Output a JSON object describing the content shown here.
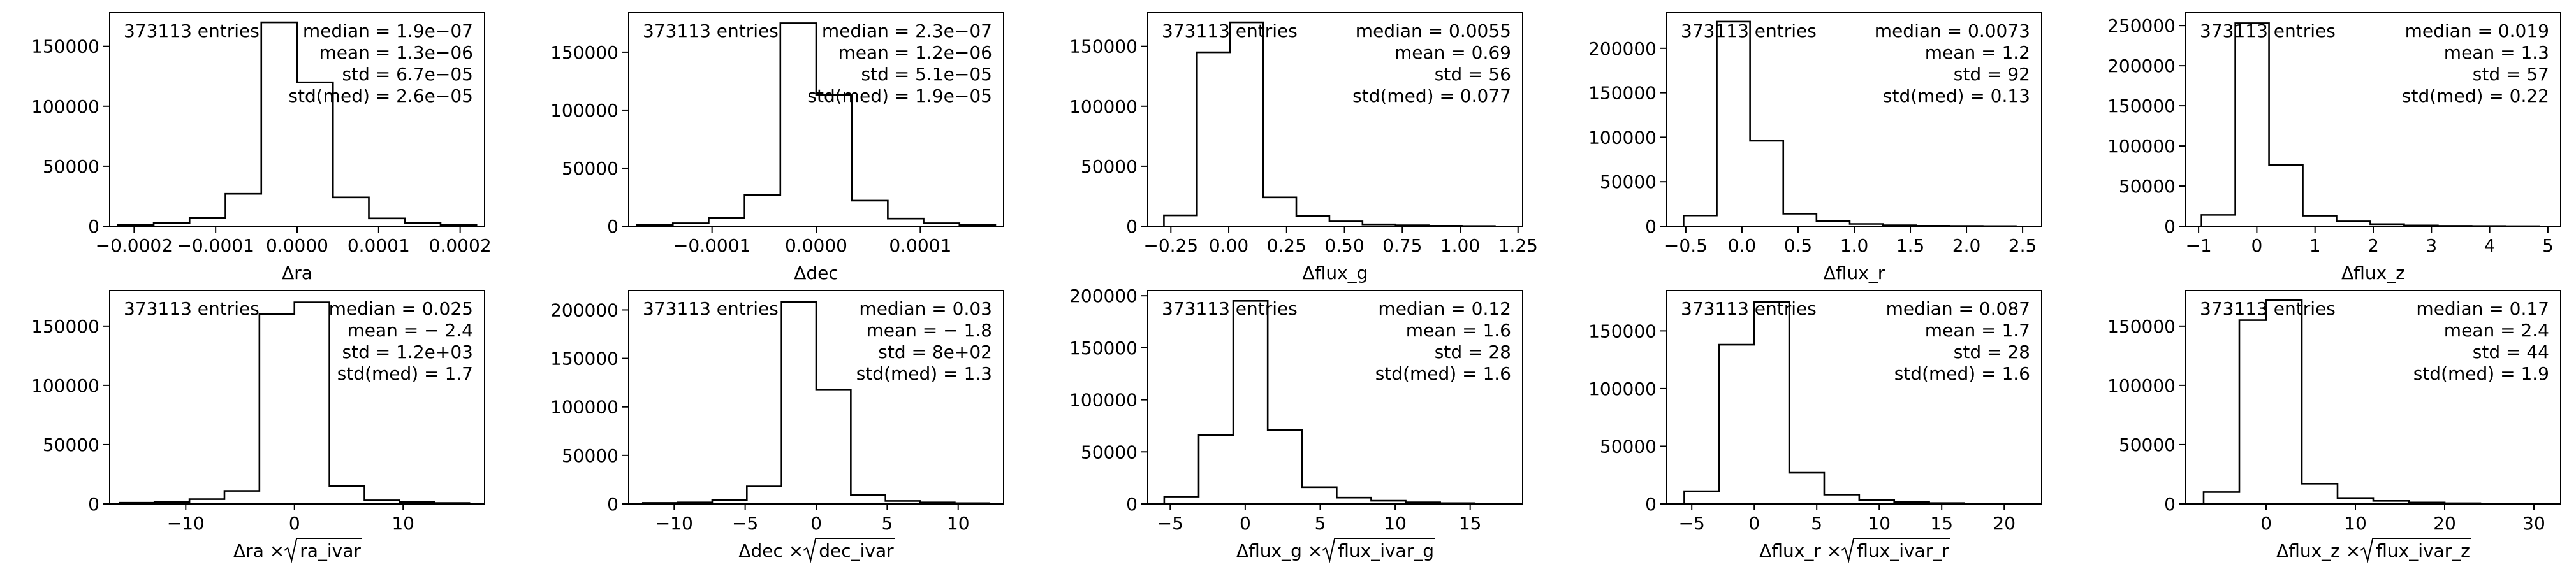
{
  "chart_data": [
    {
      "type": "histogram",
      "xlabel": "Δra",
      "entries_text": "373113 entries",
      "stats": [
        "median = 1.9e−07",
        "mean = 1.3e−06",
        "std = 6.7e−05",
        "std(med) = 2.6e−05"
      ],
      "xlim": [
        -0.00023,
        0.00023
      ],
      "ylim": [
        0,
        178000
      ],
      "xticks": [
        -0.0002,
        -0.0001,
        0.0,
        0.0001,
        0.0002
      ],
      "xtick_labels": [
        "−0.0002",
        "−0.0001",
        "0.0000",
        "0.0001",
        "0.0002"
      ],
      "yticks": [
        0,
        50000,
        100000,
        150000
      ],
      "ytick_labels": [
        "0",
        "50000",
        "100000",
        "150000"
      ],
      "bin_edges": [
        -0.00022,
        -0.000176,
        -0.000132,
        -8.8e-05,
        -4.4e-05,
        0.0,
        4.4e-05,
        8.8e-05,
        0.000132,
        0.000176,
        0.00022
      ],
      "counts": [
        1000,
        2500,
        7000,
        27000,
        170000,
        120000,
        24000,
        6500,
        2500,
        1000
      ]
    },
    {
      "type": "histogram",
      "xlabel": "Δdec",
      "entries_text": "373113 entries",
      "stats": [
        "median = 2.3e−07",
        "mean = 1.2e−06",
        "std = 5.1e−05",
        "std(med) = 1.9e−05"
      ],
      "xlim": [
        -0.00018,
        0.00018
      ],
      "ylim": [
        0,
        184000
      ],
      "xticks": [
        -0.0001,
        0.0,
        0.0001
      ],
      "xtick_labels": [
        "−0.0001",
        "0.0000",
        "0.0001"
      ],
      "yticks": [
        0,
        50000,
        100000,
        150000
      ],
      "ytick_labels": [
        "0",
        "50000",
        "100000",
        "150000"
      ],
      "bin_edges": [
        -0.000172,
        -0.0001376,
        -0.0001032,
        -6.88e-05,
        -3.44e-05,
        0.0,
        3.44e-05,
        6.88e-05,
        0.0001032,
        0.0001376,
        0.000172
      ],
      "counts": [
        1000,
        2500,
        7000,
        27000,
        175000,
        113000,
        22000,
        6500,
        2500,
        1000
      ]
    },
    {
      "type": "histogram",
      "xlabel": "Δflux_g",
      "entries_text": "373113 entries",
      "stats": [
        "median = 0.0055",
        "mean = 0.69",
        "std = 56",
        "std(med) = 0.077"
      ],
      "xlim": [
        -0.35,
        1.27
      ],
      "ylim": [
        0,
        178000
      ],
      "xticks": [
        -0.25,
        0.0,
        0.25,
        0.5,
        0.75,
        1.0,
        1.25
      ],
      "xtick_labels": [
        "−0.25",
        "0.00",
        "0.25",
        "0.50",
        "0.75",
        "1.00",
        "1.25"
      ],
      "yticks": [
        0,
        50000,
        100000,
        150000
      ],
      "ytick_labels": [
        "0",
        "50000",
        "100000",
        "150000"
      ],
      "bin_edges": [
        -0.28,
        -0.137,
        0.006,
        0.149,
        0.292,
        0.435,
        0.578,
        0.721,
        0.864,
        1.007,
        1.15
      ],
      "counts": [
        9000,
        145000,
        170000,
        24000,
        8500,
        4000,
        1500,
        800,
        400,
        200
      ]
    },
    {
      "type": "histogram",
      "xlabel": "Δflux_r",
      "entries_text": "373113 entries",
      "stats": [
        "median = 0.0073",
        "mean = 1.2",
        "std = 92",
        "std(med) = 0.13"
      ],
      "xlim": [
        -0.67,
        2.67
      ],
      "ylim": [
        0,
        240000
      ],
      "xticks": [
        -0.5,
        0.0,
        0.5,
        1.0,
        1.5,
        2.0,
        2.5
      ],
      "xtick_labels": [
        "−0.5",
        "0.0",
        "0.5",
        "1.0",
        "1.5",
        "2.0",
        "2.5"
      ],
      "yticks": [
        0,
        50000,
        100000,
        150000,
        200000
      ],
      "ytick_labels": [
        "0",
        "50000",
        "100000",
        "150000",
        "200000"
      ],
      "bin_edges": [
        -0.52,
        -0.224,
        0.072,
        0.368,
        0.664,
        0.96,
        1.256,
        1.552,
        1.848,
        2.144,
        2.44
      ],
      "counts": [
        12000,
        230000,
        96000,
        14000,
        5500,
        2500,
        1000,
        500,
        300,
        150
      ]
    },
    {
      "type": "histogram",
      "xlabel": "Δflux_z",
      "entries_text": "373113 entries",
      "stats": [
        "median = 0.019",
        "mean = 1.3",
        "std = 57",
        "std(med) = 0.22"
      ],
      "xlim": [
        -1.22,
        5.22
      ],
      "ylim": [
        0,
        266000
      ],
      "xticks": [
        -1,
        0,
        1,
        2,
        3,
        4,
        5
      ],
      "xtick_labels": [
        "−1",
        "0",
        "1",
        "2",
        "3",
        "4",
        "5"
      ],
      "yticks": [
        0,
        50000,
        100000,
        150000,
        200000,
        250000
      ],
      "ytick_labels": [
        "0",
        "50000",
        "100000",
        "150000",
        "200000",
        "250000"
      ],
      "bin_edges": [
        -0.95,
        -0.37,
        0.21,
        0.79,
        1.37,
        1.95,
        2.53,
        3.11,
        3.69,
        4.27,
        4.85
      ],
      "counts": [
        14000,
        253000,
        76000,
        13000,
        6000,
        2500,
        1000,
        500,
        250,
        100
      ]
    },
    {
      "type": "histogram",
      "xlabel_parts": [
        "Δra",
        "ra_ivar"
      ],
      "entries_text": "373113 entries",
      "stats": [
        "median = 0.025",
        "mean = − 2.4",
        "std = 1.2e+03",
        "std(med) = 1.7"
      ],
      "xlim": [
        -17,
        17.5
      ],
      "ylim": [
        0,
        180000
      ],
      "xticks": [
        -10,
        0,
        10
      ],
      "xtick_labels": [
        "−10",
        "0",
        "10"
      ],
      "yticks": [
        0,
        50000,
        100000,
        150000
      ],
      "ytick_labels": [
        "0",
        "50000",
        "100000",
        "150000"
      ],
      "bin_edges": [
        -16.1,
        -12.88,
        -9.66,
        -6.44,
        -3.22,
        0.0,
        3.22,
        6.44,
        9.66,
        12.88,
        16.1
      ],
      "counts": [
        1000,
        1500,
        4000,
        11000,
        160000,
        170000,
        15000,
        3000,
        1500,
        800
      ]
    },
    {
      "type": "histogram",
      "xlabel_parts": [
        "Δdec",
        "dec_ivar"
      ],
      "entries_text": "373113 entries",
      "stats": [
        "median = 0.03",
        "mean = − 1.8",
        "std = 8e+02",
        "std(med) = 1.3"
      ],
      "xlim": [
        -13.2,
        13.2
      ],
      "ylim": [
        0,
        220000
      ],
      "xticks": [
        -10,
        -5,
        0,
        5,
        10
      ],
      "xtick_labels": [
        "−10",
        "−5",
        "0",
        "5",
        "10"
      ],
      "yticks": [
        0,
        50000,
        100000,
        150000,
        200000
      ],
      "ytick_labels": [
        "0",
        "50000",
        "100000",
        "150000",
        "200000"
      ],
      "bin_edges": [
        -12.2,
        -9.76,
        -7.32,
        -4.88,
        -2.44,
        0.0,
        2.44,
        4.88,
        7.32,
        9.76,
        12.2
      ],
      "counts": [
        1000,
        1500,
        4000,
        18000,
        208000,
        118000,
        9000,
        3000,
        1500,
        800
      ]
    },
    {
      "type": "histogram",
      "xlabel_parts": [
        "Δflux_g",
        "flux_ivar_g"
      ],
      "entries_text": "373113 entries",
      "stats": [
        "median = 0.12",
        "mean = 1.6",
        "std = 28",
        "std(med) = 1.6"
      ],
      "xlim": [
        -6.5,
        18.5
      ],
      "ylim": [
        0,
        205000
      ],
      "xticks": [
        -5,
        0,
        5,
        10,
        15
      ],
      "xtick_labels": [
        "−5",
        "0",
        "5",
        "10",
        "15"
      ],
      "yticks": [
        0,
        50000,
        100000,
        150000,
        200000
      ],
      "ytick_labels": [
        "0",
        "50000",
        "100000",
        "150000",
        "200000"
      ],
      "bin_edges": [
        -5.4,
        -3.1,
        -0.8,
        1.5,
        3.8,
        6.1,
        8.4,
        10.7,
        13.0,
        15.3,
        17.6
      ],
      "counts": [
        7000,
        66000,
        195000,
        71000,
        16000,
        6000,
        3000,
        1500,
        700,
        300
      ]
    },
    {
      "type": "histogram",
      "xlabel_parts": [
        "Δflux_r",
        "flux_ivar_r"
      ],
      "entries_text": "373113 entries",
      "stats": [
        "median = 0.087",
        "mean = 1.7",
        "std = 28",
        "std(med) = 1.6"
      ],
      "xlim": [
        -7.0,
        23.0
      ],
      "ylim": [
        0,
        185000
      ],
      "xticks": [
        -5,
        0,
        5,
        10,
        15,
        20
      ],
      "xtick_labels": [
        "−5",
        "0",
        "5",
        "10",
        "15",
        "20"
      ],
      "yticks": [
        0,
        50000,
        100000,
        150000
      ],
      "ytick_labels": [
        "0",
        "50000",
        "100000",
        "150000"
      ],
      "bin_edges": [
        -5.6,
        -2.8,
        0.0,
        2.8,
        5.6,
        8.4,
        11.2,
        14.0,
        16.8,
        19.6,
        22.4
      ],
      "counts": [
        11000,
        138000,
        175000,
        27000,
        8000,
        3500,
        1500,
        700,
        300,
        150
      ]
    },
    {
      "type": "histogram",
      "xlabel_parts": [
        "Δflux_z",
        "flux_ivar_z"
      ],
      "entries_text": "373113 entries",
      "stats": [
        "median = 0.17",
        "mean = 2.4",
        "std = 44",
        "std(med) = 1.9"
      ],
      "xlim": [
        -9.0,
        33.0
      ],
      "ylim": [
        0,
        180000
      ],
      "xticks": [
        0,
        10,
        20,
        30
      ],
      "xtick_labels": [
        "0",
        "10",
        "20",
        "30"
      ],
      "yticks": [
        0,
        50000,
        100000,
        150000
      ],
      "ytick_labels": [
        "0",
        "50000",
        "100000",
        "150000"
      ],
      "bin_edges": [
        -7.0,
        -3.0,
        0.0,
        4.0,
        8.0,
        12.0,
        16.0,
        20.0,
        24.0,
        28.0,
        32.0
      ],
      "counts": [
        10000,
        155000,
        172000,
        17000,
        5000,
        2500,
        1200,
        600,
        300,
        150
      ]
    }
  ]
}
